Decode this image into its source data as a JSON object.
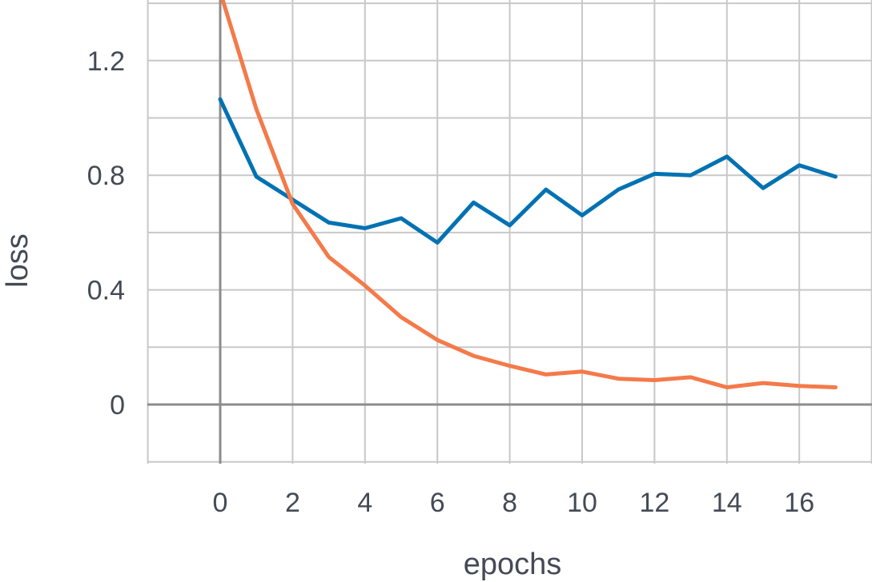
{
  "chart_data": {
    "type": "line",
    "title": "",
    "xlabel": "epochs",
    "ylabel": "loss",
    "xlim": [
      -2,
      18
    ],
    "ylim": [
      -0.2,
      1.4
    ],
    "x_ticks": [
      0,
      2,
      4,
      6,
      8,
      10,
      12,
      14,
      16
    ],
    "x_tick_labels": [
      "0",
      "2",
      "4",
      "6",
      "8",
      "10",
      "12",
      "14",
      "16"
    ],
    "y_ticks": [
      0,
      0.4,
      0.8,
      1.2
    ],
    "y_tick_labels": [
      "0",
      "0.4",
      "0.8",
      "1.2"
    ],
    "grid": true,
    "x": [
      0,
      1,
      2,
      3,
      4,
      5,
      6,
      7,
      8,
      9,
      10,
      11,
      12,
      13,
      14,
      15,
      16,
      17
    ],
    "series": [
      {
        "color": "#0072b2",
        "values": [
          1.065,
          0.795,
          0.715,
          0.635,
          0.615,
          0.65,
          0.565,
          0.705,
          0.625,
          0.75,
          0.66,
          0.75,
          0.805,
          0.8,
          0.865,
          0.755,
          0.835,
          0.795
        ]
      },
      {
        "color": "#f47a4a",
        "values": [
          1.44,
          1.03,
          0.7,
          0.515,
          0.415,
          0.305,
          0.225,
          0.17,
          0.135,
          0.105,
          0.115,
          0.09,
          0.085,
          0.095,
          0.06,
          0.075,
          0.065,
          0.06
        ]
      }
    ]
  }
}
